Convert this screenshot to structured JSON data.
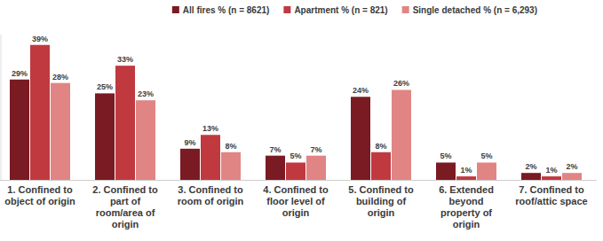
{
  "chart_data": {
    "type": "bar",
    "categories": [
      "1. Confined to object of origin",
      "2. Confined to part of room/area of origin",
      "3. Confined to room of origin",
      "4. Confined to floor level of origin",
      "5. Confined to building of origin",
      "6. Extended beyond property of origin",
      "7. Confined to roof/attic space"
    ],
    "series": [
      {
        "name": "All fires % (n = 8621)",
        "color": "#7a1a22",
        "values": [
          29,
          25,
          9,
          7,
          24,
          5,
          2
        ],
        "value_labels": [
          "29%",
          "25%",
          "9%",
          "7%",
          "24%",
          "5%",
          "2%"
        ]
      },
      {
        "name": "Apartment % (n = 821)",
        "color": "#c0393f",
        "values": [
          39,
          33,
          13,
          5,
          8,
          1,
          1
        ],
        "value_labels": [
          "39%",
          "33%",
          "13%",
          "5%",
          "8%",
          "1%",
          "1%"
        ]
      },
      {
        "name": "Single detached % (n = 6,293)",
        "color": "#e08584",
        "values": [
          28,
          23,
          8,
          7,
          26,
          5,
          2
        ],
        "value_labels": [
          "28%",
          "23%",
          "8%",
          "7%",
          "26%",
          "5%",
          "2%"
        ]
      }
    ],
    "ylim": [
      0,
      42
    ],
    "data_labels": true,
    "tick_labels": "x",
    "legend": "top",
    "grid": false
  }
}
